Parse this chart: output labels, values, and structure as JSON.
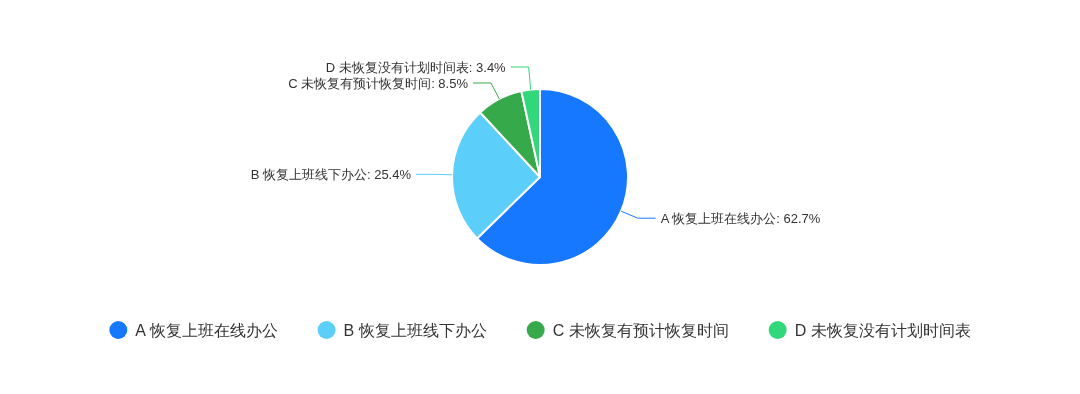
{
  "chart_data": {
    "type": "pie",
    "categories": [
      "A 恢复上班在线办公",
      "B 恢复上班线下办公",
      "C 未恢复有预计恢复时间",
      "D 未恢复没有计划时间表"
    ],
    "values": [
      62.7,
      25.4,
      8.5,
      3.4
    ],
    "colors": [
      "#1677ff",
      "#5bcffa",
      "#36a94a",
      "#32d67b"
    ],
    "value_labels": [
      ": 62.7%",
      ": 25.4%",
      ": 8.5%",
      ": 3.4%"
    ],
    "legend": "bottom"
  }
}
